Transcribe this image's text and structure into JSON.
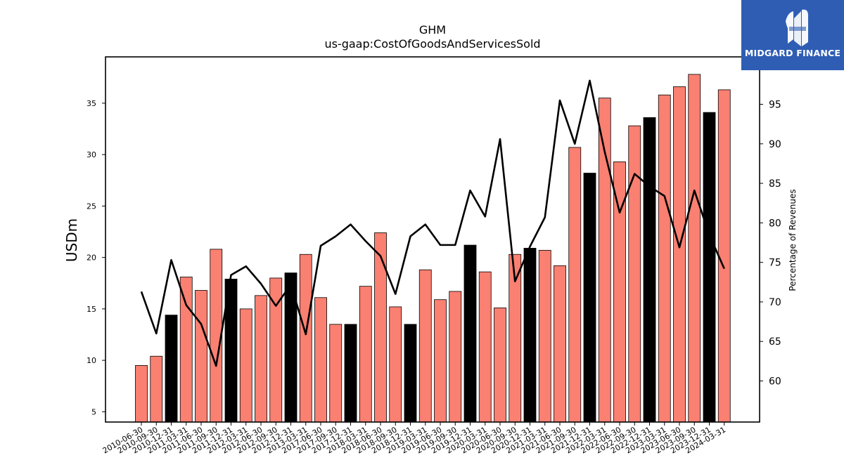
{
  "brand": {
    "name": "MIDGARD FINANCE",
    "logo_color": "#2f5db4"
  },
  "chart_data": {
    "type": "bar",
    "title": "GHM",
    "subtitle": "us-gaap:CostOfGoodsAndServicesSold",
    "ylabel": "USDm",
    "y2label": "Percentage of Revenues",
    "ylim": [
      4.0,
      39.5
    ],
    "y2lim": [
      54.8,
      101.0
    ],
    "yticks": [
      5,
      10,
      15,
      20,
      25,
      30,
      35
    ],
    "y2ticks": [
      60,
      65,
      70,
      75,
      80,
      85,
      90,
      95
    ],
    "categories": [
      "2010-06-30",
      "2010-09-30",
      "2010-12-31",
      "2011-03-31",
      "2011-06-30",
      "2011-09-30",
      "2011-12-31",
      "2012-03-31",
      "2012-06-30",
      "2012-09-30",
      "2012-12-31",
      "2013-03-31",
      "2017-06-30",
      "2017-09-30",
      "2017-12-31",
      "2018-03-31",
      "2018-06-30",
      "2018-09-30",
      "2018-12-31",
      "2019-03-31",
      "2019-06-30",
      "2019-09-30",
      "2019-12-31",
      "2020-03-31",
      "2020-06-30",
      "2020-09-30",
      "2020-12-31",
      "2021-03-31",
      "2021-06-30",
      "2021-09-30",
      "2021-12-31",
      "2022-03-31",
      "2022-06-30",
      "2022-09-30",
      "2022-12-31",
      "2023-03-31",
      "2023-06-30",
      "2023-09-30",
      "2023-12-31",
      "2024-03-31"
    ],
    "series": [
      {
        "kind": "bar",
        "values": [
          9.5,
          10.4,
          14.4,
          18.1,
          16.8,
          20.8,
          17.9,
          15.0,
          16.3,
          18.0,
          18.5,
          20.3,
          16.1,
          13.5,
          13.5,
          17.2,
          22.4,
          15.2,
          13.5,
          18.8,
          15.9,
          16.7,
          21.2,
          18.6,
          15.1,
          20.3,
          20.9,
          20.7,
          19.2,
          30.7,
          28.2,
          35.5,
          29.3,
          32.8,
          33.6,
          35.8,
          36.6,
          37.8,
          34.1,
          36.3
        ],
        "colors": [
          "#fa8072",
          "#fa8072",
          "#000000",
          "#fa8072",
          "#fa8072",
          "#fa8072",
          "#000000",
          "#fa8072",
          "#fa8072",
          "#fa8072",
          "#000000",
          "#fa8072",
          "#fa8072",
          "#fa8072",
          "#000000",
          "#fa8072",
          "#fa8072",
          "#fa8072",
          "#000000",
          "#fa8072",
          "#fa8072",
          "#fa8072",
          "#000000",
          "#fa8072",
          "#fa8072",
          "#fa8072",
          "#000000",
          "#fa8072",
          "#fa8072",
          "#fa8072",
          "#000000",
          "#fa8072",
          "#fa8072",
          "#fa8072",
          "#000000",
          "#fa8072",
          "#fa8072",
          "#fa8072",
          "#000000",
          "#fa8072"
        ]
      },
      {
        "kind": "line",
        "axis": "right",
        "color": "#000000",
        "values": [
          71.3,
          66.0,
          75.3,
          69.6,
          67.2,
          61.9,
          73.4,
          74.5,
          72.3,
          69.5,
          72.2,
          65.9,
          77.1,
          78.3,
          79.8,
          77.7,
          75.8,
          71.0,
          78.3,
          79.8,
          77.2,
          77.2,
          84.1,
          80.8,
          90.6,
          72.6,
          77.0,
          80.7,
          95.5,
          90.0,
          98.0,
          89.0,
          81.3,
          86.2,
          84.6,
          83.4,
          76.9,
          84.1,
          78.5,
          74.2
        ]
      }
    ],
    "grid": false,
    "legend": "none"
  }
}
